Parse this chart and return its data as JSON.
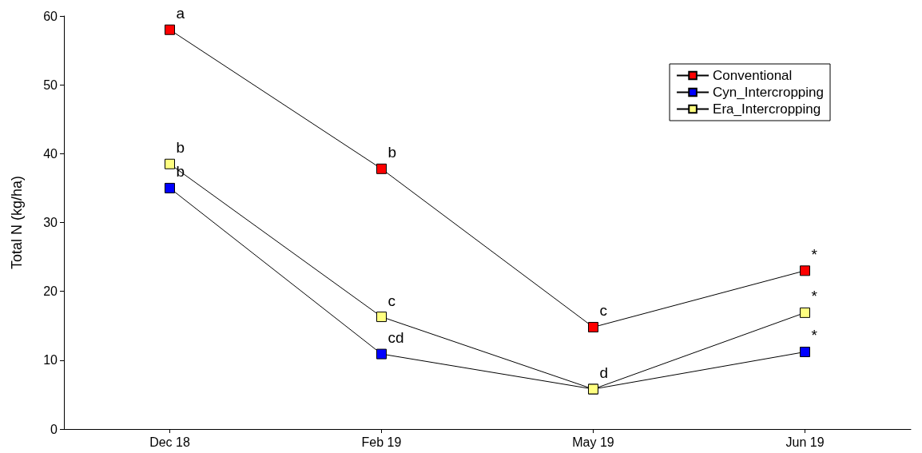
{
  "chart_data": {
    "type": "line",
    "ylabel": "Total N (kg/ha)",
    "categories": [
      "Dec 18",
      "Feb 19",
      "May 19",
      "Jun 19"
    ],
    "series": [
      {
        "name": "Conventional",
        "color": "#ff0000",
        "values": [
          58,
          37.8,
          14.8,
          23
        ]
      },
      {
        "name": "Cyn_Intercropping",
        "color": "#0000ff",
        "values": [
          35,
          10.9,
          5.8,
          11.2
        ]
      },
      {
        "name": "Era_Intercropping",
        "color": "#ffff80",
        "values": [
          38.5,
          16.3,
          5.8,
          16.9
        ]
      }
    ],
    "ylim": [
      0,
      60
    ],
    "yticks": [
      0,
      10,
      20,
      30,
      40,
      50,
      60
    ],
    "grid": false,
    "legend": "top right",
    "marker": "square",
    "line_style": "solid",
    "annotations": [
      {
        "text": "a",
        "x": "Dec 18",
        "y": 58
      },
      {
        "text": "b",
        "x": "Feb 19",
        "y": 37.8
      },
      {
        "text": "c",
        "x": "May 19",
        "y": 14.8
      },
      {
        "text": "*",
        "x": "Jun 19",
        "y": 23
      },
      {
        "text": "b",
        "x": "Dec 18",
        "y": 38.5
      },
      {
        "text": "c",
        "x": "Feb 19",
        "y": 16.3
      },
      {
        "text": "d",
        "x": "May 19",
        "y": 5.8
      },
      {
        "text": "*",
        "x": "Jun 19",
        "y": 16.9
      },
      {
        "text": "b",
        "x": "Dec 18",
        "y": 35
      },
      {
        "text": "cd",
        "x": "Feb 19",
        "y": 10.9
      },
      {
        "text": "*",
        "x": "Jun 19",
        "y": 11.2
      }
    ]
  }
}
